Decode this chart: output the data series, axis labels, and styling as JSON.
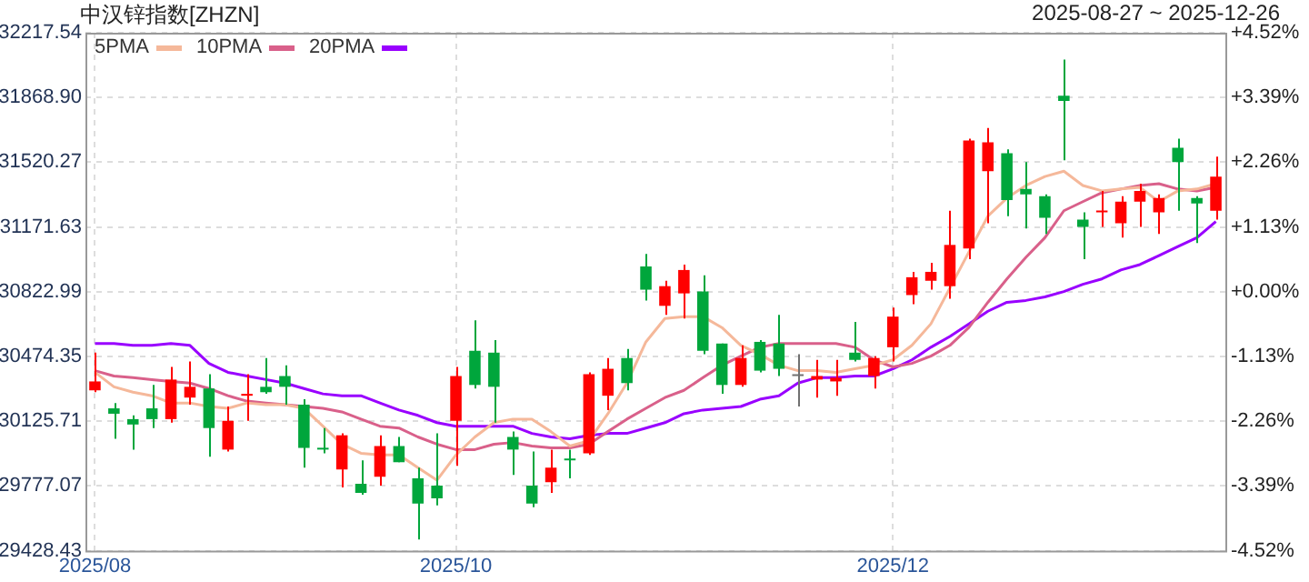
{
  "chart_data": {
    "type": "candlestick",
    "title": "中汉锌指数[ZHZN]",
    "subtitle": "2025-08-27 ~ 2025-12-26",
    "categories": [
      "2025/08",
      null,
      null,
      null,
      null,
      null,
      null,
      null,
      null,
      null,
      null,
      null,
      null,
      null,
      null,
      null,
      null,
      null,
      null,
      "2025/10",
      null,
      null,
      null,
      null,
      null,
      null,
      null,
      null,
      null,
      null,
      null,
      null,
      null,
      null,
      null,
      null,
      null,
      null,
      null,
      null,
      null,
      null,
      "2025/12",
      null,
      null,
      null,
      null,
      null,
      null,
      null,
      null,
      null,
      null,
      null,
      null,
      null,
      null,
      null,
      null,
      null
    ],
    "ohlc": [
      [
        30292,
        30495,
        30282,
        30340
      ],
      [
        30195,
        30224,
        30031,
        30166
      ],
      [
        30137,
        30157,
        29973,
        30108
      ],
      [
        30195,
        30321,
        30089,
        30137
      ],
      [
        30137,
        30418,
        30118,
        30350
      ],
      [
        30253,
        30447,
        30215,
        30311
      ],
      [
        30302,
        30379,
        29934,
        30089
      ],
      [
        29973,
        30205,
        29963,
        30128
      ],
      [
        30263,
        30379,
        30128,
        30273
      ],
      [
        30311,
        30466,
        30273,
        30282
      ],
      [
        30369,
        30427,
        30215,
        30311
      ],
      [
        30215,
        30244,
        29876,
        29982
      ],
      [
        29982,
        30089,
        29953,
        29973
      ],
      [
        29866,
        30060,
        29769,
        30050
      ],
      [
        29789,
        29915,
        29730,
        29740
      ],
      [
        29827,
        30050,
        29779,
        29992
      ],
      [
        29992,
        30041,
        29905,
        29905
      ],
      [
        29818,
        29876,
        29489,
        29682
      ],
      [
        29779,
        30060,
        29673,
        29711
      ],
      [
        30128,
        30418,
        29885,
        30369
      ],
      [
        30505,
        30669,
        30302,
        30321
      ],
      [
        30495,
        30563,
        30118,
        30311
      ],
      [
        30041,
        30070,
        29837,
        29973
      ],
      [
        29779,
        29963,
        29663,
        29682
      ],
      [
        29798,
        29973,
        29740,
        29876
      ],
      [
        29924,
        29973,
        29818,
        29915
      ],
      [
        29953,
        30389,
        29944,
        30379
      ],
      [
        30263,
        30466,
        30186,
        30408
      ],
      [
        30466,
        30515,
        30292,
        30331
      ],
      [
        30959,
        31027,
        30776,
        30834
      ],
      [
        30747,
        30882,
        30698,
        30853
      ],
      [
        30814,
        30969,
        30679,
        30940
      ],
      [
        30824,
        30911,
        30486,
        30505
      ],
      [
        30544,
        30544,
        30273,
        30321
      ],
      [
        30321,
        30534,
        30311,
        30466
      ],
      [
        30553,
        30563,
        30389,
        30398
      ],
      [
        30544,
        30698,
        30369,
        30408
      ],
      [
        30369,
        30486,
        30205,
        30369
      ],
      [
        30350,
        30456,
        30253,
        30369
      ],
      [
        30340,
        30456,
        30263,
        30360
      ],
      [
        30495,
        30660,
        30447,
        30456
      ],
      [
        30369,
        30476,
        30302,
        30466
      ],
      [
        30524,
        30737,
        30447,
        30689
      ],
      [
        30805,
        30930,
        30756,
        30901
      ],
      [
        30882,
        30979,
        30834,
        30930
      ],
      [
        30853,
        31259,
        30785,
        31075
      ],
      [
        31056,
        31647,
        30998,
        31637
      ],
      [
        31472,
        31705,
        31192,
        31627
      ],
      [
        31569,
        31589,
        31230,
        31317
      ],
      [
        31376,
        31521,
        31163,
        31347
      ],
      [
        31337,
        31347,
        31134,
        31221
      ],
      [
        31879,
        32073,
        31531,
        31850
      ],
      [
        31211,
        31250,
        30998,
        31172
      ],
      [
        31250,
        31366,
        31172,
        31259
      ],
      [
        31192,
        31337,
        31114,
        31308
      ],
      [
        31308,
        31405,
        31172,
        31366
      ],
      [
        31250,
        31347,
        31134,
        31327
      ],
      [
        31598,
        31647,
        31259,
        31521
      ],
      [
        31327,
        31337,
        31085,
        31298
      ],
      [
        31259,
        31550,
        31211,
        31443
      ]
    ],
    "colors": [
      "#ff0000",
      "#00a63c",
      "#00a63c",
      "#00a63c",
      "#ff0000",
      "#ff0000",
      "#00a63c",
      "#ff0000",
      "#ff0000",
      "#00a63c",
      "#00a63c",
      "#00a63c",
      "#00a63c",
      "#ff0000",
      "#00a63c",
      "#ff0000",
      "#00a63c",
      "#00a63c",
      "#00a63c",
      "#ff0000",
      "#00a63c",
      "#00a63c",
      "#00a63c",
      "#00a63c",
      "#ff0000",
      "#00a63c",
      "#ff0000",
      "#ff0000",
      "#00a63c",
      "#00a63c",
      "#ff0000",
      "#ff0000",
      "#00a63c",
      "#00a63c",
      "#ff0000",
      "#00a63c",
      "#00a63c",
      "#707070",
      "#ff0000",
      "#ff0000",
      "#00a63c",
      "#ff0000",
      "#ff0000",
      "#ff0000",
      "#ff0000",
      "#ff0000",
      "#ff0000",
      "#ff0000",
      "#00a63c",
      "#00a63c",
      "#00a63c",
      "#00a63c",
      "#00a63c",
      "#ff0000",
      "#ff0000",
      "#ff0000",
      "#ff0000",
      "#00a63c",
      "#00a63c",
      "#ff0000"
    ],
    "series": [
      {
        "type": "line",
        "name": "5PMA",
        "color": "#f5b89a",
        "values": [
          30389,
          30311,
          30282,
          30263,
          30224,
          30224,
          30205,
          30195,
          30224,
          30215,
          30215,
          30195,
          30099,
          30002,
          29953,
          29944,
          29944,
          29876,
          29808,
          29944,
          30041,
          30118,
          30137,
          30137,
          30070,
          29992,
          30021,
          30166,
          30331,
          30553,
          30679,
          30689,
          30689,
          30630,
          30534,
          30486,
          30427,
          30398,
          30398,
          30389,
          30408,
          30427,
          30456,
          30534,
          30650,
          30843,
          31037,
          31230,
          31327,
          31395,
          31443,
          31472,
          31395,
          31366,
          31376,
          31385,
          31308,
          31366,
          31376,
          31405
        ]
      },
      {
        "type": "line",
        "name": "10PMA",
        "color": "#d9608a",
        "values": [
          30398,
          30369,
          30360,
          30350,
          30340,
          30331,
          30302,
          30263,
          30234,
          30224,
          30215,
          30205,
          30195,
          30176,
          30137,
          30099,
          30089,
          30041,
          30002,
          29973,
          29973,
          30002,
          30011,
          29992,
          29982,
          29982,
          30002,
          30070,
          30137,
          30195,
          30253,
          30292,
          30360,
          30427,
          30476,
          30524,
          30544,
          30544,
          30544,
          30544,
          30524,
          30456,
          30418,
          30437,
          30476,
          30534,
          30630,
          30766,
          30892,
          31008,
          31114,
          31259,
          31308,
          31356,
          31376,
          31395,
          31405,
          31376,
          31366,
          31385
        ]
      },
      {
        "type": "line",
        "name": "20PMA",
        "color": "#9900ff",
        "values": [
          30544,
          30544,
          30534,
          30534,
          30544,
          30534,
          30437,
          30389,
          30369,
          30350,
          30331,
          30302,
          30273,
          30263,
          30263,
          30224,
          30186,
          30157,
          30118,
          30099,
          30099,
          30099,
          30099,
          30060,
          30041,
          30031,
          30050,
          30060,
          30060,
          30089,
          30118,
          30166,
          30186,
          30195,
          30205,
          30244,
          30263,
          30331,
          30360,
          30360,
          30369,
          30369,
          30408,
          30456,
          30524,
          30582,
          30650,
          30718,
          30766,
          30776,
          30795,
          30824,
          30863,
          30892,
          30940,
          30969,
          31017,
          31066,
          31114,
          31201
        ]
      }
    ],
    "ylim": [
      29428.43,
      32217.54
    ],
    "yticks": [
      29428.43,
      29777.07,
      30125.71,
      30474.35,
      30822.99,
      31171.63,
      {
        "value": 31520.27,
        "label": "31520.27"
      },
      {
        "value": 31868.9,
        "label": "31868.90"
      },
      32217.54
    ],
    "y2lim": [
      -4.52,
      4.52
    ],
    "y2ticks": [
      {
        "value": -4.52,
        "label": "-4.52%"
      },
      {
        "value": -3.39,
        "label": "-3.39%"
      },
      {
        "value": -2.26,
        "label": "-2.26%"
      },
      {
        "value": -1.13,
        "label": "-1.13%"
      },
      {
        "value": 0,
        "label": "+0.00%"
      },
      {
        "value": 1.13,
        "label": "+1.13%"
      },
      {
        "value": 2.26,
        "label": "+2.26%"
      },
      {
        "value": 3.39,
        "label": "+3.39%"
      },
      {
        "value": 4.52,
        "label": "+4.52%"
      }
    ],
    "grid": true,
    "legend": "top left",
    "marker": "none",
    "line_style": "solid"
  }
}
